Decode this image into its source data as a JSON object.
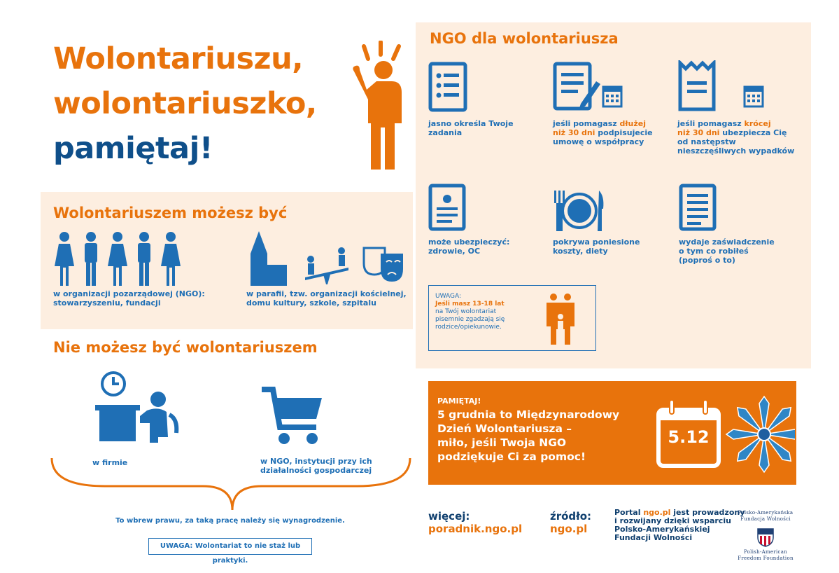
{
  "headline": {
    "line1": "Wolontariuszu,",
    "line2": "wolontariuszko,",
    "line3": "pamiętaj!"
  },
  "can_be": {
    "title": "Wolontariuszem możesz być",
    "left_line1": "w organizacji pozarządowej (NGO):",
    "left_line2": "stowarzyszeniu, fundacji",
    "right_line1": "w parafii, tzw. organizacji kościelnej,",
    "right_line2": "domu kultury, szkole, szpitalu"
  },
  "cannot_be": {
    "title": "Nie możesz być wolontariuszem",
    "firm_label": "w firmie",
    "ngo_line1": "w NGO, instytucji przy ich",
    "ngo_line2": "działalności gospodarczej",
    "law_note": "To wbrew prawu, za taką pracę należy się wynagrodzenie.",
    "uwaga_note": "UWAGA: Wolontariat to nie staż lub praktyki."
  },
  "ngo": {
    "title": "NGO dla wolontariusza",
    "item1_line1": "jasno określa Twoje",
    "item1_line2": "zadania",
    "item2_a": "jeśli pomagasz ",
    "item2_hl": "dłużej",
    "item2_hl2": "niż 30 dni",
    "item2_b": " podpisujecie",
    "item2_c": "umowę o współpracy",
    "item3_a": "jeśli pomagasz ",
    "item3_hl": "krócej",
    "item3_hl2": "niż 30 dni",
    "item3_b": " ubezpiecza Cię",
    "item3_c": "od następstw",
    "item3_d": "nieszczęśliwych wypadków",
    "item4_line1": "może ubezpieczyć:",
    "item4_line2": "zdrowie, OC",
    "item5_line1": "pokrywa poniesione",
    "item5_line2": "koszty, diety",
    "item6_line1": "wydaje zaświadczenie",
    "item6_line2": "o tym co robiłeś",
    "item6_line3": "(poproś o to)",
    "uwaga_title": "UWAGA:",
    "uwaga_hl": "Jeśli masz 13-18 lat",
    "uwaga_line2": "na Twój wolontariat",
    "uwaga_line3": "pisemnie zgadzają się",
    "uwaga_line4": "rodzice/opiekunowie."
  },
  "remember": {
    "label": "PAMIĘTAJ!",
    "line1": "5 grudnia to Międzynarodowy",
    "line2": "Dzień Wolontariusza –",
    "line3": "miło, jeśli Twoja NGO",
    "line4": "podziękuje Ci za pomoc!",
    "date": "5.12"
  },
  "footer": {
    "more_label": "więcej:",
    "more_link": "poradnik.ngo.pl",
    "source_label": "źródło:",
    "source_link": "ngo.pl",
    "portal_a": "Portal ",
    "portal_hl": "ngo.pl",
    "portal_b": " jest prowadzony",
    "portal_line2": "i rozwijany dzięki wsparciu",
    "portal_line3": "Polsko-Amerykańskiej",
    "portal_line4": "Fundacji Wolności",
    "logo_pl_line1": "Polsko-Amerykańska",
    "logo_pl_line2": "Fundacja Wolności",
    "logo_en_line1": "Polish-American",
    "logo_en_line2": "Freedom Foundation"
  },
  "colors": {
    "orange": "#e8730c",
    "blue": "#1f6fb5",
    "peach": "#fdeee0"
  }
}
